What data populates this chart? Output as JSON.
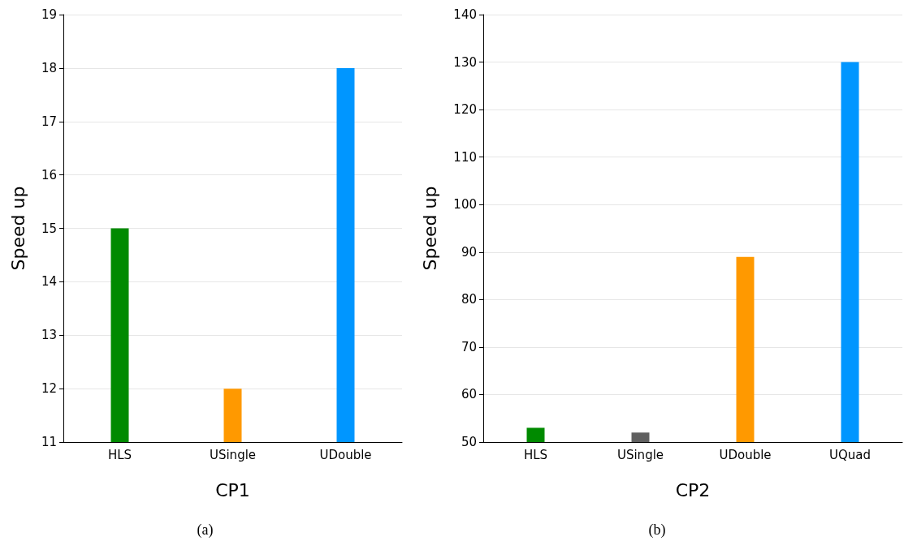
{
  "chart_data": [
    {
      "type": "bar",
      "categories": [
        "HLS",
        "USingle",
        "UDouble"
      ],
      "values": [
        15,
        12,
        18
      ],
      "colors": [
        "#008a00",
        "#ff9900",
        "#0096ff"
      ],
      "ylim": [
        11,
        19
      ],
      "yticks": [
        11,
        12,
        13,
        14,
        15,
        16,
        17,
        18,
        19
      ],
      "ylabel": "Speed up",
      "xlabel": "CP1",
      "grid": "y",
      "annotations": [
        "(a)"
      ]
    },
    {
      "type": "bar",
      "categories": [
        "HLS",
        "USingle",
        "UDouble",
        "UQuad"
      ],
      "values": [
        53,
        52,
        89,
        130
      ],
      "colors": [
        "#008a00",
        "#606060",
        "#ff9900",
        "#0096ff"
      ],
      "ylim": [
        50,
        140
      ],
      "yticks": [
        50,
        60,
        70,
        80,
        90,
        100,
        110,
        120,
        130,
        140
      ],
      "ylabel": "Speed up",
      "xlabel": "CP2",
      "grid": "y",
      "annotations": [
        "(b)"
      ]
    }
  ]
}
